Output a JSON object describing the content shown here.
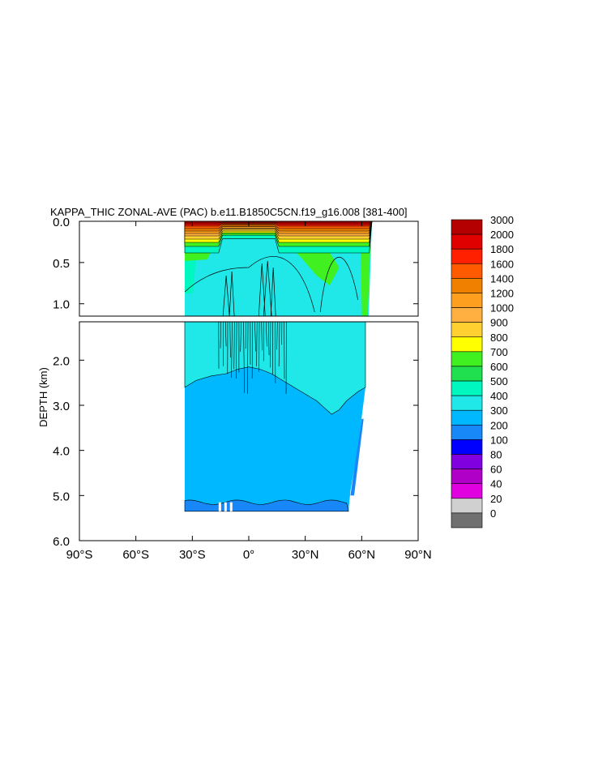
{
  "chart_data": {
    "type": "heatmap",
    "title": "KAPPA_THIC ZONAL-AVE (PAC) b.e11.B1850C5CN.f19_g16.008 [381-400]",
    "ylabel": "DEPTH (km)",
    "xlabel": "",
    "x_ticks": [
      "90°S",
      "60°S",
      "30°S",
      "0°",
      "30°N",
      "60°N",
      "90°N"
    ],
    "x_tick_values": [
      -90,
      -60,
      -30,
      0,
      30,
      60,
      90
    ],
    "xlim": [
      -90,
      90
    ],
    "upper_panel": {
      "ylim": [
        0.0,
        1.15
      ],
      "y_ticks": [
        "0.0",
        "0.5",
        "1.0"
      ],
      "y_tick_values": [
        0.0,
        0.5,
        1.0
      ]
    },
    "lower_panel": {
      "ylim": [
        1.15,
        6.0
      ],
      "y_ticks": [
        "2.0",
        "3.0",
        "4.0",
        "5.0",
        "6.0"
      ],
      "y_tick_values": [
        2.0,
        3.0,
        4.0,
        5.0,
        6.0
      ]
    },
    "data_extent": {
      "lat_min": -34,
      "lat_max": 62,
      "max_depth_km": 5.35
    },
    "colorbar": {
      "labels": [
        "3000",
        "2000",
        "1800",
        "1600",
        "1400",
        "1200",
        "1000",
        "900",
        "800",
        "700",
        "600",
        "500",
        "400",
        "300",
        "200",
        "100",
        "80",
        "60",
        "40",
        "20",
        "0"
      ],
      "colors": [
        "#b40000",
        "#e00000",
        "#ff2000",
        "#ff5a00",
        "#f08000",
        "#ff9f20",
        "#ffb040",
        "#ffd030",
        "#ffff00",
        "#40f020",
        "#20e050",
        "#00f8c0",
        "#20e8e8",
        "#00b8ff",
        "#1888f8",
        "#0000ff",
        "#8000e0",
        "#b000c8",
        "#e000e0",
        "#d0d0d0",
        "#707070"
      ]
    }
  }
}
